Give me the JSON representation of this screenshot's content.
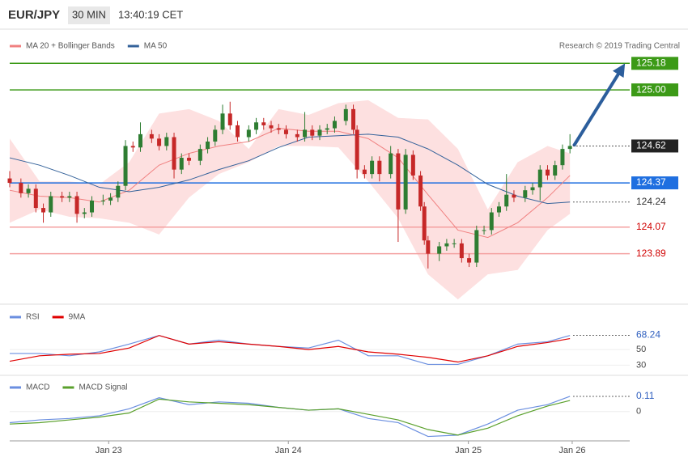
{
  "header": {
    "symbol": "EUR/JPY",
    "interval": "30 MIN",
    "time": "13:40:19 CET"
  },
  "chart_data": [
    {
      "type": "candlestick",
      "annotation": "Research © 2019 Trading Central",
      "xlim": [
        0,
        166
      ],
      "ylim": [
        123.57,
        125.39
      ],
      "up_color": "#2e7d32",
      "down_color": "#c62828",
      "candle_x": [
        0,
        3,
        5,
        7,
        9,
        11,
        14,
        16,
        18,
        20,
        22,
        25,
        27,
        29,
        31,
        33,
        35,
        38,
        40,
        42,
        44,
        46,
        48,
        51,
        53,
        55,
        57,
        59,
        61,
        64,
        66,
        68,
        70,
        72,
        74,
        77,
        79,
        81,
        83,
        85,
        87,
        90,
        92,
        93,
        95,
        97,
        99,
        102,
        104,
        106,
        108,
        110,
        111,
        112,
        115,
        117,
        119,
        121,
        123,
        125,
        127,
        129,
        131,
        133,
        135,
        138,
        140,
        142,
        144,
        146,
        148,
        150
      ],
      "candles": [
        [
          124.4,
          124.45,
          124.34,
          124.37
        ],
        [
          124.37,
          124.4,
          124.27,
          124.3
        ],
        [
          124.3,
          124.36,
          124.27,
          124.33
        ],
        [
          124.33,
          124.36,
          124.17,
          124.2
        ],
        [
          124.2,
          124.23,
          124.1,
          124.17
        ],
        [
          124.17,
          124.31,
          124.14,
          124.28
        ],
        [
          124.28,
          124.31,
          124.24,
          124.27
        ],
        [
          124.27,
          124.31,
          124.24,
          124.28
        ],
        [
          124.28,
          124.31,
          124.1,
          124.16
        ],
        [
          124.16,
          124.2,
          124.13,
          124.17
        ],
        [
          124.17,
          124.28,
          124.14,
          124.25
        ],
        [
          124.25,
          124.29,
          124.22,
          124.25
        ],
        [
          124.25,
          124.3,
          124.22,
          124.27
        ],
        [
          124.27,
          124.38,
          124.24,
          124.35
        ],
        [
          124.35,
          124.66,
          124.32,
          124.62
        ],
        [
          124.62,
          124.65,
          124.58,
          124.61
        ],
        [
          124.61,
          124.78,
          124.58,
          124.7
        ],
        [
          124.7,
          124.73,
          124.64,
          124.67
        ],
        [
          124.67,
          124.7,
          124.59,
          124.62
        ],
        [
          124.62,
          124.71,
          124.59,
          124.68
        ],
        [
          124.68,
          124.71,
          124.4,
          124.46
        ],
        [
          124.46,
          124.57,
          124.43,
          124.54
        ],
        [
          124.54,
          124.57,
          124.49,
          124.52
        ],
        [
          124.52,
          124.63,
          124.49,
          124.6
        ],
        [
          124.6,
          124.68,
          124.57,
          124.65
        ],
        [
          124.65,
          124.76,
          124.62,
          124.73
        ],
        [
          124.73,
          124.9,
          124.7,
          124.84
        ],
        [
          124.84,
          124.92,
          124.73,
          124.76
        ],
        [
          124.76,
          124.79,
          124.65,
          124.68
        ],
        [
          124.68,
          124.76,
          124.65,
          124.73
        ],
        [
          124.73,
          124.81,
          124.7,
          124.78
        ],
        [
          124.78,
          124.81,
          124.73,
          124.76
        ],
        [
          124.76,
          124.79,
          124.71,
          124.74
        ],
        [
          124.74,
          124.77,
          124.7,
          124.73
        ],
        [
          124.73,
          124.76,
          124.67,
          124.7
        ],
        [
          124.7,
          124.73,
          124.65,
          124.68
        ],
        [
          124.68,
          124.85,
          124.65,
          124.73
        ],
        [
          124.73,
          124.76,
          124.66,
          124.69
        ],
        [
          124.69,
          124.76,
          124.66,
          124.73
        ],
        [
          124.73,
          124.77,
          124.7,
          124.74
        ],
        [
          124.74,
          124.82,
          124.71,
          124.79
        ],
        [
          124.79,
          124.9,
          124.76,
          124.87
        ],
        [
          124.87,
          124.9,
          124.7,
          124.73
        ],
        [
          124.73,
          124.76,
          124.4,
          124.46
        ],
        [
          124.46,
          124.49,
          124.4,
          124.43
        ],
        [
          124.43,
          124.55,
          124.4,
          124.52
        ],
        [
          124.52,
          124.55,
          124.38,
          124.43
        ],
        [
          124.43,
          124.62,
          124.4,
          124.57
        ],
        [
          124.57,
          124.6,
          123.97,
          124.19
        ],
        [
          124.19,
          124.6,
          124.16,
          124.56
        ],
        [
          124.56,
          124.59,
          124.39,
          124.42
        ],
        [
          124.42,
          124.45,
          124.18,
          124.21
        ],
        [
          124.21,
          124.24,
          123.95,
          123.98
        ],
        [
          123.98,
          124.01,
          123.79,
          123.89
        ],
        [
          123.89,
          123.97,
          123.84,
          123.94
        ],
        [
          123.94,
          123.99,
          123.91,
          123.96
        ],
        [
          123.96,
          123.99,
          123.93,
          123.96
        ],
        [
          123.96,
          123.99,
          123.83,
          123.86
        ],
        [
          123.86,
          123.89,
          123.8,
          123.83
        ],
        [
          123.83,
          124.08,
          123.8,
          124.05
        ],
        [
          124.05,
          124.08,
          124.02,
          124.05
        ],
        [
          124.05,
          124.2,
          124.02,
          124.17
        ],
        [
          124.17,
          124.24,
          124.14,
          124.21
        ],
        [
          124.21,
          124.43,
          124.18,
          124.29
        ],
        [
          124.29,
          124.32,
          124.24,
          124.27
        ],
        [
          124.27,
          124.35,
          124.24,
          124.32
        ],
        [
          124.32,
          124.37,
          124.29,
          124.34
        ],
        [
          124.34,
          124.49,
          124.25,
          124.46
        ],
        [
          124.46,
          124.49,
          124.39,
          124.42
        ],
        [
          124.42,
          124.52,
          124.39,
          124.49
        ],
        [
          124.49,
          124.63,
          124.46,
          124.6
        ],
        [
          124.6,
          124.7,
          124.57,
          124.62
        ]
      ],
      "x": [
        0,
        8,
        16,
        24,
        32,
        40,
        48,
        56,
        64,
        72,
        80,
        88,
        96,
        104,
        112,
        120,
        128,
        136,
        144,
        150
      ],
      "series": [
        {
          "name": "MA 20 + Bollinger Bands",
          "color": "#f08080",
          "band_color": "#fde0e0",
          "values": [
            124.32,
            124.28,
            124.27,
            124.24,
            124.32,
            124.49,
            124.57,
            124.62,
            124.65,
            124.74,
            124.72,
            124.72,
            124.67,
            124.54,
            124.29,
            124.05,
            124.0,
            124.1,
            124.27,
            124.42
          ],
          "upper": [
            124.67,
            124.38,
            124.38,
            124.36,
            124.51,
            124.84,
            124.87,
            124.79,
            124.6,
            124.87,
            124.83,
            124.91,
            124.93,
            124.81,
            124.8,
            124.6,
            124.19,
            124.51,
            124.62,
            124.57
          ],
          "lower": [
            124.1,
            124.19,
            124.14,
            124.13,
            124.1,
            124.02,
            124.27,
            124.43,
            124.51,
            124.62,
            124.62,
            124.61,
            124.38,
            124.13,
            123.75,
            123.58,
            123.75,
            123.78,
            124.05,
            124.16
          ]
        },
        {
          "name": "MA 50",
          "color": "#34629a",
          "values": [
            124.54,
            124.49,
            124.42,
            124.34,
            124.31,
            124.34,
            124.39,
            124.46,
            124.52,
            124.61,
            124.68,
            124.69,
            124.7,
            124.68,
            124.6,
            124.49,
            124.36,
            124.28,
            124.23,
            124.24
          ]
        }
      ],
      "levels": [
        {
          "value": 125.18,
          "color": "#3c9a17",
          "line": "solid",
          "tag": "box"
        },
        {
          "value": 125,
          "label": "125.00",
          "color": "#3c9a17",
          "line": "solid",
          "tag": "box"
        },
        {
          "value": 124.62,
          "color": "#222222",
          "line": "dotted",
          "tag": "box"
        },
        {
          "value": 124.37,
          "color": "#1f6fe0",
          "line": "solid",
          "tag": "box"
        },
        {
          "value": 124.24,
          "color": "#333333",
          "line": "dotted",
          "tag": "text"
        },
        {
          "value": 124.07,
          "color": "#d00000",
          "line": "solid",
          "tag": "text"
        },
        {
          "value": 123.89,
          "color": "#d00000",
          "line": "solid",
          "tag": "text"
        }
      ],
      "forecast": {
        "from": [
          151,
          124.62
        ],
        "to": [
          164,
          125.15
        ],
        "color": "#2c5e9c"
      }
    },
    {
      "type": "line",
      "xlim": [
        0,
        166
      ],
      "ylim": [
        19,
        104
      ],
      "yticks": [
        30,
        50
      ],
      "last_value": 68.24,
      "x": [
        0,
        8,
        16,
        24,
        32,
        40,
        48,
        56,
        64,
        72,
        80,
        88,
        96,
        104,
        112,
        120,
        128,
        136,
        144,
        150
      ],
      "series": [
        {
          "name": "RSI",
          "color": "#6b8fe0",
          "values": [
            45,
            45,
            42,
            47,
            57,
            68,
            57,
            62,
            57,
            54,
            52,
            62,
            42,
            42,
            31,
            31,
            42,
            57,
            60,
            68
          ]
        },
        {
          "name": "9MA",
          "color": "#e00000",
          "values": [
            35,
            42,
            44,
            45,
            52,
            68,
            57,
            60,
            57,
            54,
            50,
            54,
            47,
            44,
            40,
            34,
            42,
            54,
            59,
            64
          ]
        }
      ]
    },
    {
      "type": "line",
      "xlim": [
        0,
        166
      ],
      "ylim": [
        -0.2,
        0.25
      ],
      "yticks": [
        0
      ],
      "last_value": 0.11,
      "x": [
        0,
        8,
        16,
        24,
        32,
        40,
        48,
        56,
        64,
        72,
        80,
        88,
        96,
        104,
        112,
        120,
        128,
        136,
        144,
        150
      ],
      "series": [
        {
          "name": "MACD",
          "color": "#6b8fe0",
          "values": [
            -0.08,
            -0.06,
            -0.05,
            -0.03,
            0.02,
            0.1,
            0.05,
            0.07,
            0.06,
            0.03,
            0.01,
            0.02,
            -0.05,
            -0.08,
            -0.18,
            -0.17,
            -0.09,
            0.01,
            0.05,
            0.11
          ]
        },
        {
          "name": "MACD Signal",
          "color": "#5aa02c",
          "values": [
            -0.09,
            -0.08,
            -0.06,
            -0.04,
            -0.01,
            0.09,
            0.07,
            0.06,
            0.05,
            0.03,
            0.01,
            0.02,
            -0.02,
            -0.06,
            -0.13,
            -0.17,
            -0.12,
            -0.03,
            0.04,
            0.08
          ]
        }
      ],
      "xticks": [
        {
          "value": 26.5,
          "label": "Jan 23"
        },
        {
          "value": 74.6,
          "label": "Jan 24"
        },
        {
          "value": 122.8,
          "label": "Jan 25"
        },
        {
          "value": 150.6,
          "label": "Jan 26"
        }
      ]
    }
  ]
}
